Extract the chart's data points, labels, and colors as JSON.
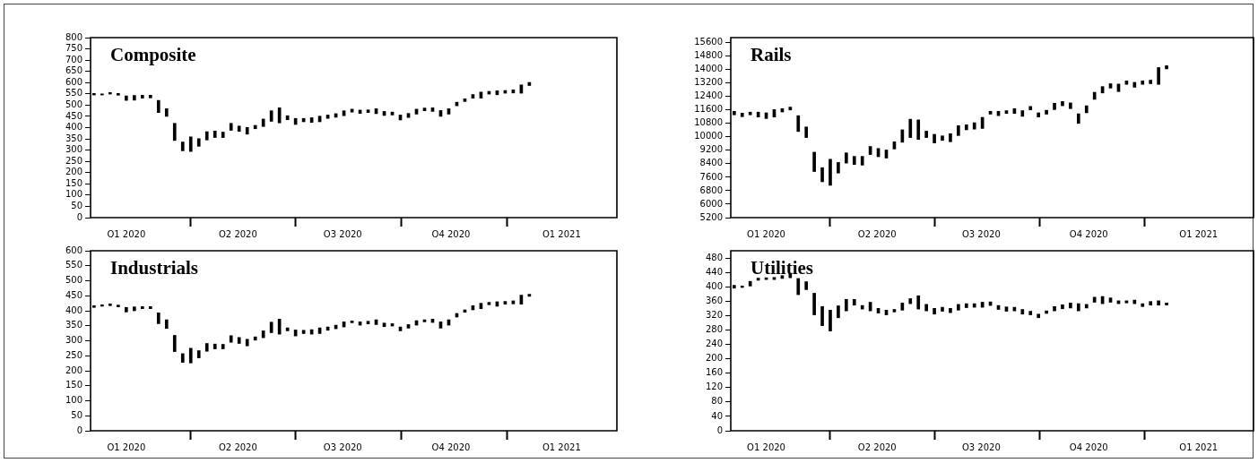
{
  "chart_data": [
    {
      "type": "bar",
      "title": "Composite",
      "color": "#000000",
      "x": [
        "2020-01-08",
        "2020-01-15",
        "2020-01-22",
        "2020-01-29",
        "2020-02-05",
        "2020-02-12",
        "2020-02-19",
        "2020-02-26",
        "2020-03-04",
        "2020-03-11",
        "2020-03-18",
        "2020-03-25",
        "2020-04-01",
        "2020-04-08",
        "2020-04-15",
        "2020-04-22",
        "2020-04-29",
        "2020-05-06",
        "2020-05-13",
        "2020-05-20",
        "2020-05-27",
        "2020-06-03",
        "2020-06-10",
        "2020-06-17",
        "2020-06-24",
        "2020-07-01",
        "2020-07-08",
        "2020-07-15",
        "2020-07-22",
        "2020-07-29",
        "2020-08-05",
        "2020-08-12",
        "2020-08-19",
        "2020-08-26",
        "2020-09-02",
        "2020-09-09",
        "2020-09-16",
        "2020-09-23",
        "2020-09-30",
        "2020-10-07",
        "2020-10-14",
        "2020-10-21",
        "2020-10-28",
        "2020-11-04",
        "2020-11-11",
        "2020-11-18",
        "2020-11-25",
        "2020-12-02",
        "2020-12-09",
        "2020-12-16",
        "2020-12-23",
        "2020-12-30",
        "2021-01-06",
        "2021-01-13",
        "2021-01-20"
      ],
      "base": [
        545,
        545,
        549,
        544,
        521,
        522,
        531,
        532,
        467,
        450,
        343,
        297,
        294,
        317,
        345,
        356,
        356,
        388,
        383,
        371,
        395,
        405,
        428,
        421,
        435,
        414,
        426,
        423,
        426,
        441,
        446,
        453,
        469,
        463,
        467,
        462,
        454,
        456,
        434,
        445,
        460,
        475,
        472,
        450,
        460,
        497,
        516,
        531,
        531,
        549,
        546,
        553,
        554,
        553,
        587
      ],
      "values": [
        7,
        5,
        7,
        8,
        20,
        21,
        13,
        12,
        54,
        34,
        76,
        39,
        65,
        34,
        37,
        29,
        24,
        31,
        24,
        30,
        15,
        33,
        47,
        67,
        18,
        27,
        15,
        21,
        25,
        15,
        16,
        22,
        13,
        15,
        12,
        22,
        18,
        13,
        22,
        18,
        22,
        12,
        16,
        26,
        24,
        16,
        12,
        16,
        27,
        12,
        18,
        12,
        14,
        37,
        14
      ],
      "xlim": [
        "2020-01-05",
        "2021-04-06"
      ],
      "xticks": [
        {
          "value": "2020-02-05",
          "label": "Q1 2020"
        },
        {
          "value": "2020-04-01",
          "label": null
        },
        {
          "value": "2020-05-12",
          "label": "Q2 2020"
        },
        {
          "value": "2020-07-01",
          "label": null
        },
        {
          "value": "2020-08-11",
          "label": "Q3 2020"
        },
        {
          "value": "2020-10-01",
          "label": null
        },
        {
          "value": "2020-11-13",
          "label": "Q4 2020"
        },
        {
          "value": "2021-01-01",
          "label": null
        },
        {
          "value": "2021-02-17",
          "label": "Q1 2021"
        }
      ],
      "ylim": [
        0,
        800
      ],
      "yticks": [
        0,
        50,
        100,
        150,
        200,
        250,
        300,
        350,
        400,
        450,
        500,
        550,
        600,
        650,
        700,
        750,
        800
      ]
    },
    {
      "type": "bar",
      "title": "Rails",
      "color": "#000000",
      "x": [
        "2020-01-08",
        "2020-01-15",
        "2020-01-22",
        "2020-01-29",
        "2020-02-05",
        "2020-02-12",
        "2020-02-19",
        "2020-02-26",
        "2020-03-04",
        "2020-03-11",
        "2020-03-18",
        "2020-03-25",
        "2020-04-01",
        "2020-04-08",
        "2020-04-15",
        "2020-04-22",
        "2020-04-29",
        "2020-05-06",
        "2020-05-13",
        "2020-05-20",
        "2020-05-27",
        "2020-06-03",
        "2020-06-10",
        "2020-06-17",
        "2020-06-24",
        "2020-07-01",
        "2020-07-08",
        "2020-07-15",
        "2020-07-22",
        "2020-07-29",
        "2020-08-05",
        "2020-08-12",
        "2020-08-19",
        "2020-08-26",
        "2020-09-02",
        "2020-09-09",
        "2020-09-16",
        "2020-09-23",
        "2020-09-30",
        "2020-10-07",
        "2020-10-14",
        "2020-10-21",
        "2020-10-28",
        "2020-11-04",
        "2020-11-11",
        "2020-11-18",
        "2020-11-25",
        "2020-12-02",
        "2020-12-09",
        "2020-12-16",
        "2020-12-23",
        "2020-12-30",
        "2021-01-06",
        "2021-01-13",
        "2021-01-20"
      ],
      "base": [
        11310,
        11200,
        11310,
        11180,
        11090,
        11180,
        11480,
        11600,
        10320,
        9960,
        7940,
        7330,
        7120,
        7850,
        8440,
        8360,
        8320,
        8950,
        8820,
        8740,
        9280,
        9680,
        9960,
        9850,
        9960,
        9640,
        9790,
        9710,
        10080,
        10420,
        10460,
        10500,
        11350,
        11260,
        11390,
        11390,
        11220,
        11600,
        11180,
        11350,
        11620,
        11850,
        11680,
        10800,
        11430,
        12230,
        12610,
        12900,
        12690,
        13120,
        12950,
        13120,
        13160,
        13120,
        14040
      ],
      "values": [
        210,
        210,
        160,
        290,
        340,
        440,
        200,
        170,
        940,
        630,
        1150,
        840,
        1550,
        630,
        610,
        480,
        520,
        480,
        490,
        480,
        430,
        740,
        1090,
        1160,
        380,
        510,
        270,
        480,
        590,
        300,
        380,
        660,
        170,
        260,
        170,
        290,
        340,
        210,
        250,
        230,
        380,
        250,
        340,
        570,
        420,
        420,
        380,
        260,
        450,
        210,
        290,
        210,
        210,
        1000,
        190
      ],
      "xlim": [
        "2020-01-05",
        "2021-04-06"
      ],
      "xticks": [
        {
          "value": "2020-02-05",
          "label": "Q1 2020"
        },
        {
          "value": "2020-04-01",
          "label": null
        },
        {
          "value": "2020-05-12",
          "label": "Q2 2020"
        },
        {
          "value": "2020-07-01",
          "label": null
        },
        {
          "value": "2020-08-11",
          "label": "Q3 2020"
        },
        {
          "value": "2020-10-01",
          "label": null
        },
        {
          "value": "2020-11-13",
          "label": "Q4 2020"
        },
        {
          "value": "2021-01-01",
          "label": null
        },
        {
          "value": "2021-02-17",
          "label": "Q1 2021"
        }
      ],
      "ylim": [
        5200,
        15900
      ],
      "yticks": [
        5200,
        6000,
        6800,
        7600,
        8400,
        9200,
        10000,
        10800,
        11600,
        12400,
        13200,
        14000,
        14800,
        15600
      ]
    },
    {
      "type": "bar",
      "title": "Industrials",
      "color": "#000000",
      "x": [
        "2020-01-08",
        "2020-01-15",
        "2020-01-22",
        "2020-01-29",
        "2020-02-05",
        "2020-02-12",
        "2020-02-19",
        "2020-02-26",
        "2020-03-04",
        "2020-03-11",
        "2020-03-18",
        "2020-03-25",
        "2020-04-01",
        "2020-04-08",
        "2020-04-15",
        "2020-04-22",
        "2020-04-29",
        "2020-05-06",
        "2020-05-13",
        "2020-05-20",
        "2020-05-27",
        "2020-06-03",
        "2020-06-10",
        "2020-06-17",
        "2020-06-24",
        "2020-07-01",
        "2020-07-08",
        "2020-07-15",
        "2020-07-22",
        "2020-07-29",
        "2020-08-05",
        "2020-08-12",
        "2020-08-19",
        "2020-08-26",
        "2020-09-02",
        "2020-09-09",
        "2020-09-16",
        "2020-09-23",
        "2020-09-30",
        "2020-10-07",
        "2020-10-14",
        "2020-10-21",
        "2020-10-28",
        "2020-11-04",
        "2020-11-11",
        "2020-11-18",
        "2020-11-25",
        "2020-12-02",
        "2020-12-09",
        "2020-12-16",
        "2020-12-23",
        "2020-12-30",
        "2021-01-06",
        "2021-01-13",
        "2021-01-20"
      ],
      "base": [
        411,
        415,
        417,
        413,
        396,
        400,
        407,
        407,
        357,
        341,
        264,
        228,
        226,
        243,
        265,
        273,
        273,
        295,
        291,
        283,
        302,
        310,
        327,
        322,
        333,
        316,
        324,
        322,
        324,
        335,
        340,
        346,
        360,
        352,
        356,
        354,
        347,
        349,
        333,
        342,
        352,
        363,
        361,
        342,
        352,
        379,
        395,
        403,
        407,
        420,
        415,
        422,
        423,
        422,
        448
      ],
      "values": [
        6,
        5,
        6,
        6,
        15,
        13,
        7,
        7,
        36,
        29,
        54,
        29,
        49,
        24,
        26,
        16,
        15,
        22,
        20,
        22,
        11,
        23,
        35,
        50,
        10,
        20,
        11,
        15,
        19,
        11,
        12,
        17,
        6,
        11,
        9,
        16,
        12,
        8,
        13,
        12,
        15,
        7,
        11,
        21,
        18,
        12,
        8,
        14,
        18,
        8,
        15,
        9,
        10,
        30,
        7
      ],
      "xlim": [
        "2020-01-05",
        "2021-04-06"
      ],
      "xticks": [
        {
          "value": "2020-02-05",
          "label": "Q1 2020"
        },
        {
          "value": "2020-04-01",
          "label": null
        },
        {
          "value": "2020-05-12",
          "label": "Q2 2020"
        },
        {
          "value": "2020-07-01",
          "label": null
        },
        {
          "value": "2020-08-11",
          "label": "Q3 2020"
        },
        {
          "value": "2020-10-01",
          "label": null
        },
        {
          "value": "2020-11-13",
          "label": "Q4 2020"
        },
        {
          "value": "2021-01-01",
          "label": null
        },
        {
          "value": "2021-02-17",
          "label": "Q1 2021"
        }
      ],
      "ylim": [
        0,
        600
      ],
      "yticks": [
        0,
        50,
        100,
        150,
        200,
        250,
        300,
        350,
        400,
        450,
        500,
        550,
        600
      ]
    },
    {
      "type": "bar",
      "title": "Utilities",
      "color": "#000000",
      "x": [
        "2020-01-08",
        "2020-01-15",
        "2020-01-22",
        "2020-01-29",
        "2020-02-05",
        "2020-02-12",
        "2020-02-19",
        "2020-02-26",
        "2020-03-04",
        "2020-03-11",
        "2020-03-18",
        "2020-03-25",
        "2020-04-01",
        "2020-04-08",
        "2020-04-15",
        "2020-04-22",
        "2020-04-29",
        "2020-05-06",
        "2020-05-13",
        "2020-05-20",
        "2020-05-27",
        "2020-06-03",
        "2020-06-10",
        "2020-06-17",
        "2020-06-24",
        "2020-07-01",
        "2020-07-08",
        "2020-07-15",
        "2020-07-22",
        "2020-07-29",
        "2020-08-05",
        "2020-08-12",
        "2020-08-19",
        "2020-08-26",
        "2020-09-02",
        "2020-09-09",
        "2020-09-16",
        "2020-09-23",
        "2020-09-30",
        "2020-10-07",
        "2020-10-14",
        "2020-10-21",
        "2020-10-28",
        "2020-11-04",
        "2020-11-11",
        "2020-11-18",
        "2020-11-25",
        "2020-12-02",
        "2020-12-09",
        "2020-12-16",
        "2020-12-23",
        "2020-12-30",
        "2021-01-06",
        "2021-01-13",
        "2021-01-20"
      ],
      "base": [
        396,
        398,
        402,
        418,
        420,
        420,
        423,
        425,
        378,
        392,
        322,
        292,
        277,
        314,
        333,
        349,
        338,
        333,
        327,
        322,
        330,
        335,
        353,
        338,
        333,
        324,
        332,
        328,
        335,
        342,
        343,
        343,
        348,
        337,
        332,
        333,
        324,
        322,
        314,
        326,
        333,
        339,
        341,
        333,
        341,
        357,
        353,
        357,
        353,
        355,
        353,
        345,
        349,
        349,
        349
      ],
      "values": [
        8,
        4,
        13,
        6,
        5,
        6,
        8,
        12,
        45,
        22,
        60,
        53,
        58,
        33,
        32,
        16,
        10,
        24,
        13,
        13,
        7,
        20,
        14,
        37,
        18,
        16,
        11,
        12,
        16,
        11,
        10,
        14,
        10,
        11,
        12,
        10,
        13,
        10,
        10,
        7,
        12,
        11,
        14,
        20,
        10,
        14,
        20,
        12,
        8,
        6,
        10,
        8,
        10,
        12,
        6
      ],
      "xlim": [
        "2020-01-05",
        "2021-04-06"
      ],
      "xticks": [
        {
          "value": "2020-02-05",
          "label": "Q1 2020"
        },
        {
          "value": "2020-04-01",
          "label": null
        },
        {
          "value": "2020-05-12",
          "label": "Q2 2020"
        },
        {
          "value": "2020-07-01",
          "label": null
        },
        {
          "value": "2020-08-11",
          "label": "Q3 2020"
        },
        {
          "value": "2020-10-01",
          "label": null
        },
        {
          "value": "2020-11-13",
          "label": "Q4 2020"
        },
        {
          "value": "2021-01-01",
          "label": null
        },
        {
          "value": "2021-02-17",
          "label": "Q1 2021"
        }
      ],
      "ylim": [
        0,
        500
      ],
      "yticks": [
        0,
        40,
        80,
        120,
        160,
        200,
        240,
        280,
        320,
        360,
        400,
        440,
        480
      ]
    }
  ]
}
